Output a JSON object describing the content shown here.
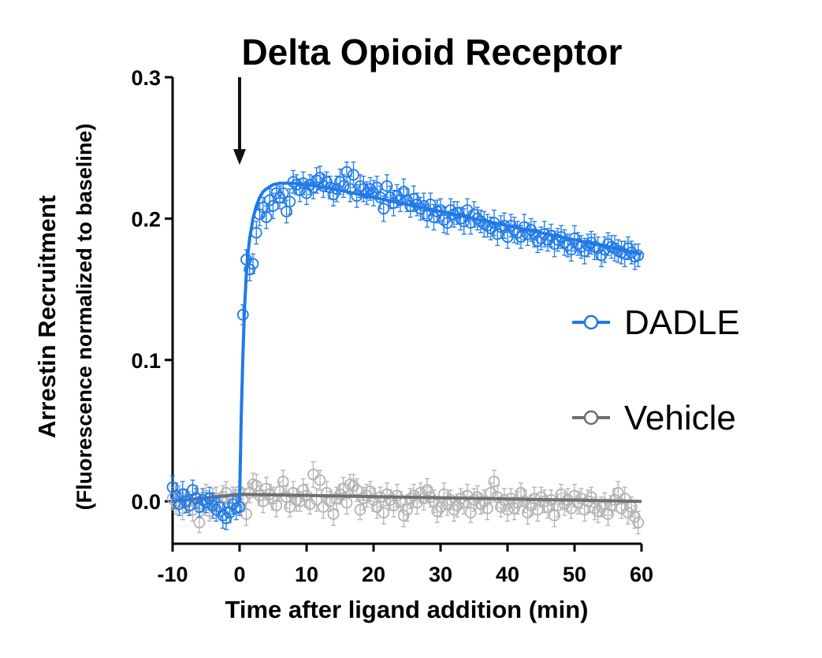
{
  "colors": {
    "dadle": "#1f7ae8",
    "vehicle": "#b3b3b3",
    "vehicle_fit": "#6f6f6f",
    "axis": "#000000"
  },
  "chart_data": {
    "type": "scatter",
    "title": "Delta Opioid Receptor",
    "xlabel": "Time after ligand addition (min)",
    "ylabel": "Arrestin Recruitment",
    "ylabel_sub": "(Fluorescence normalized to baseline)",
    "xlim": [
      -10,
      60
    ],
    "ylim": [
      -0.03,
      0.3
    ],
    "x_ticks": [
      -10,
      0,
      10,
      20,
      30,
      40,
      50,
      60
    ],
    "x_tick_labels": [
      "-10",
      "0",
      "10",
      "20",
      "30",
      "40",
      "50",
      "60"
    ],
    "y_ticks": [
      0.0,
      0.1,
      0.2,
      0.3
    ],
    "y_tick_labels": [
      "0.0",
      "0.1",
      "0.2",
      "0.3"
    ],
    "annotation": {
      "type": "arrow",
      "x": 0,
      "y_from": 0.3,
      "y_to": 0.238
    },
    "legend": {
      "position": "right",
      "entries": [
        "DADLE",
        "Vehicle"
      ]
    },
    "grid": false,
    "series": [
      {
        "name": "DADLE",
        "color": "#1f7ae8",
        "x": [
          -10,
          -9.5,
          -9,
          -8.5,
          -8,
          -7.5,
          -7,
          -6.5,
          -6,
          -5.5,
          -5,
          -4.5,
          -4,
          -3.5,
          -3,
          -2.5,
          -2,
          -1.5,
          -1,
          -0.5,
          0,
          0.5,
          1,
          1.5,
          2,
          2.5,
          3,
          3.5,
          4,
          4.5,
          5,
          5.5,
          6,
          6.5,
          7,
          7.5,
          8,
          8.5,
          9,
          9.5,
          10,
          10.5,
          11,
          11.5,
          12,
          12.5,
          13,
          13.5,
          14,
          14.5,
          15,
          15.5,
          16,
          16.5,
          17,
          17.5,
          18,
          18.5,
          19,
          19.5,
          20,
          20.5,
          21,
          21.5,
          22,
          22.5,
          23,
          23.5,
          24,
          24.5,
          25,
          25.5,
          26,
          26.5,
          27,
          27.5,
          28,
          28.5,
          29,
          29.5,
          30,
          30.5,
          31,
          31.5,
          32,
          32.5,
          33,
          33.5,
          34,
          34.5,
          35,
          35.5,
          36,
          36.5,
          37,
          37.5,
          38,
          38.5,
          39,
          39.5,
          40,
          40.5,
          41,
          41.5,
          42,
          42.5,
          43,
          43.5,
          44,
          44.5,
          45,
          45.5,
          46,
          46.5,
          47,
          47.5,
          48,
          48.5,
          49,
          49.5,
          50,
          50.5,
          51,
          51.5,
          52,
          52.5,
          53,
          53.5,
          54,
          54.5,
          55,
          55.5,
          56,
          56.5,
          57,
          57.5,
          58,
          58.5,
          59,
          59.5
        ],
        "y": [
          0.01,
          0.004,
          -0.002,
          0.005,
          0.0,
          -0.003,
          0.008,
          0.002,
          -0.004,
          0.001,
          -0.001,
          0.002,
          -0.003,
          -0.006,
          -0.004,
          -0.01,
          -0.012,
          -0.008,
          -0.002,
          -0.005,
          -0.004,
          0.132,
          0.171,
          0.164,
          0.168,
          0.19,
          0.203,
          0.208,
          0.201,
          0.213,
          0.209,
          0.218,
          0.215,
          0.218,
          0.205,
          0.212,
          0.226,
          0.224,
          0.22,
          0.225,
          0.218,
          0.224,
          0.222,
          0.227,
          0.229,
          0.223,
          0.226,
          0.222,
          0.217,
          0.221,
          0.226,
          0.223,
          0.233,
          0.221,
          0.231,
          0.216,
          0.223,
          0.221,
          0.218,
          0.221,
          0.218,
          0.222,
          0.215,
          0.207,
          0.223,
          0.215,
          0.211,
          0.216,
          0.213,
          0.219,
          0.213,
          0.209,
          0.214,
          0.21,
          0.207,
          0.209,
          0.202,
          0.21,
          0.201,
          0.205,
          0.206,
          0.199,
          0.197,
          0.206,
          0.203,
          0.204,
          0.2,
          0.198,
          0.206,
          0.197,
          0.203,
          0.2,
          0.198,
          0.196,
          0.195,
          0.193,
          0.197,
          0.189,
          0.194,
          0.195,
          0.187,
          0.195,
          0.192,
          0.19,
          0.187,
          0.194,
          0.189,
          0.192,
          0.189,
          0.184,
          0.186,
          0.189,
          0.185,
          0.188,
          0.182,
          0.185,
          0.187,
          0.183,
          0.181,
          0.178,
          0.186,
          0.182,
          0.18,
          0.177,
          0.181,
          0.183,
          0.18,
          0.179,
          0.174,
          0.178,
          0.182,
          0.18,
          0.179,
          0.177,
          0.176,
          0.175,
          0.179,
          0.176,
          0.173,
          0.174
        ],
        "y_err": [
          0.008,
          0.009,
          0.008,
          0.009,
          0.008,
          0.007,
          0.007,
          0.007,
          0.007,
          0.008,
          0.007,
          0.008,
          0.009,
          0.008,
          0.007,
          0.009,
          0.008,
          0.007,
          0.007,
          0.008,
          0.006,
          0.007,
          0.007,
          0.008,
          0.007,
          0.008,
          0.008,
          0.007,
          0.008,
          0.008,
          0.009,
          0.007,
          0.008,
          0.007,
          0.008,
          0.009,
          0.008,
          0.007,
          0.008,
          0.008,
          0.008,
          0.007,
          0.008,
          0.009,
          0.008,
          0.008,
          0.007,
          0.008,
          0.008,
          0.009,
          0.009,
          0.008,
          0.007,
          0.009,
          0.009,
          0.008,
          0.008,
          0.009,
          0.008,
          0.008,
          0.009,
          0.008,
          0.008,
          0.009,
          0.008,
          0.008,
          0.009,
          0.008,
          0.008,
          0.009,
          0.008,
          0.008,
          0.009,
          0.008,
          0.008,
          0.009,
          0.008,
          0.008,
          0.009,
          0.008,
          0.008,
          0.009,
          0.008,
          0.008,
          0.009,
          0.008,
          0.008,
          0.009,
          0.008,
          0.008,
          0.009,
          0.008,
          0.008,
          0.009,
          0.008,
          0.008,
          0.009,
          0.008,
          0.008,
          0.009,
          0.008,
          0.008,
          0.009,
          0.008,
          0.008,
          0.009,
          0.008,
          0.008,
          0.009,
          0.008,
          0.008,
          0.009,
          0.008,
          0.008,
          0.009,
          0.008,
          0.008,
          0.009,
          0.008,
          0.008,
          0.009,
          0.008,
          0.008,
          0.009,
          0.008,
          0.008,
          0.009,
          0.008,
          0.008,
          0.009,
          0.008,
          0.008,
          0.009,
          0.008,
          0.008,
          0.009,
          0.008,
          0.008,
          0.009,
          0.008
        ],
        "fit": {
          "x": [
            0,
            0.25,
            0.5,
            0.75,
            1,
            1.25,
            1.5,
            2,
            2.5,
            3,
            3.5,
            4,
            5,
            6,
            8,
            10,
            14,
            20,
            30,
            40,
            50,
            60
          ],
          "y": [
            0.0,
            0.06,
            0.105,
            0.138,
            0.16,
            0.175,
            0.186,
            0.2,
            0.209,
            0.215,
            0.219,
            0.221,
            0.224,
            0.225,
            0.225,
            0.224,
            0.221,
            0.215,
            0.205,
            0.195,
            0.185,
            0.175
          ]
        }
      },
      {
        "name": "Vehicle",
        "color": "#b3b3b3",
        "x": [
          -10,
          -9.5,
          -9,
          -8.5,
          -8,
          -7.5,
          -7,
          -6.5,
          -6,
          -5.5,
          -5,
          -4.5,
          -4,
          -3.5,
          -3,
          -2.5,
          -2,
          -1.5,
          -1,
          -0.5,
          0,
          0.5,
          1,
          1.5,
          2,
          2.5,
          3,
          3.5,
          4,
          4.5,
          5,
          5.5,
          6,
          6.5,
          7,
          7.5,
          8,
          8.5,
          9,
          9.5,
          10,
          10.5,
          11,
          11.5,
          12,
          12.5,
          13,
          13.5,
          14,
          14.5,
          15,
          15.5,
          16,
          16.5,
          17,
          17.5,
          18,
          18.5,
          19,
          19.5,
          20,
          20.5,
          21,
          21.5,
          22,
          22.5,
          23,
          23.5,
          24,
          24.5,
          25,
          25.5,
          26,
          26.5,
          27,
          27.5,
          28,
          28.5,
          29,
          29.5,
          30,
          30.5,
          31,
          31.5,
          32,
          32.5,
          33,
          33.5,
          34,
          34.5,
          35,
          35.5,
          36,
          36.5,
          37,
          37.5,
          38,
          38.5,
          39,
          39.5,
          40,
          40.5,
          41,
          41.5,
          42,
          42.5,
          43,
          43.5,
          44,
          44.5,
          45,
          45.5,
          46,
          46.5,
          47,
          47.5,
          48,
          48.5,
          49,
          49.5,
          50,
          50.5,
          51,
          51.5,
          52,
          52.5,
          53,
          53.5,
          54,
          54.5,
          55,
          55.5,
          56,
          56.5,
          57,
          57.5,
          58,
          58.5,
          59,
          59.5
        ],
        "y": [
          0.002,
          -0.001,
          0.004,
          -0.005,
          0.001,
          0.0,
          -0.006,
          0.003,
          -0.015,
          -0.002,
          0.004,
          -0.007,
          0.001,
          0.002,
          -0.003,
          0.003,
          0.006,
          -0.004,
          0.002,
          0.0,
          0.007,
          0.001,
          -0.009,
          0.006,
          0.012,
          0.011,
          0.004,
          0.0,
          0.009,
          0.005,
          0.002,
          -0.003,
          0.007,
          0.014,
          0.003,
          -0.004,
          0.006,
          0.001,
          0.0,
          0.008,
          0.004,
          -0.002,
          0.019,
          0.001,
          0.015,
          -0.004,
          0.006,
          0.0,
          -0.009,
          0.002,
          0.005,
          0.009,
          -0.001,
          0.012,
          0.011,
          0.008,
          -0.006,
          0.002,
          0.004,
          0.007,
          0.001,
          -0.004,
          0.003,
          -0.008,
          0.005,
          0.001,
          -0.003,
          0.004,
          0.0,
          -0.01,
          -0.006,
          0.002,
          0.004,
          -0.001,
          0.006,
          0.002,
          0.008,
          0.003,
          0.0,
          -0.007,
          -0.004,
          0.005,
          -0.002,
          0.001,
          -0.006,
          -0.003,
          0.002,
          -0.001,
          0.004,
          -0.008,
          0.001,
          0.003,
          -0.002,
          0.0,
          -0.005,
          0.006,
          0.014,
          0.003,
          -0.004,
          0.001,
          -0.006,
          0.002,
          -0.005,
          -0.001,
          0.006,
          0.0,
          -0.008,
          -0.003,
          0.002,
          -0.006,
          0.003,
          0.0,
          -0.004,
          0.001,
          -0.01,
          -0.003,
          0.005,
          -0.002,
          0.001,
          -0.005,
          0.004,
          -0.001,
          0.002,
          -0.006,
          0.0,
          0.003,
          -0.005,
          -0.007,
          -0.004,
          -0.002,
          -0.009,
          -0.003,
          0.001,
          0.006,
          -0.005,
          0.002,
          -0.008,
          -0.004,
          -0.011,
          -0.015
        ],
        "y_err": [
          0.008,
          0.008,
          0.007,
          0.008,
          0.008,
          0.007,
          0.008,
          0.008,
          0.007,
          0.008,
          0.008,
          0.007,
          0.008,
          0.008,
          0.007,
          0.008,
          0.008,
          0.007,
          0.008,
          0.008,
          0.007,
          0.008,
          0.008,
          0.007,
          0.008,
          0.008,
          0.007,
          0.008,
          0.008,
          0.007,
          0.008,
          0.008,
          0.007,
          0.008,
          0.008,
          0.007,
          0.008,
          0.008,
          0.007,
          0.008,
          0.008,
          0.007,
          0.009,
          0.008,
          0.007,
          0.008,
          0.008,
          0.007,
          0.008,
          0.008,
          0.007,
          0.008,
          0.008,
          0.007,
          0.008,
          0.008,
          0.007,
          0.008,
          0.008,
          0.007,
          0.008,
          0.008,
          0.007,
          0.008,
          0.008,
          0.007,
          0.008,
          0.008,
          0.007,
          0.008,
          0.008,
          0.007,
          0.008,
          0.008,
          0.007,
          0.008,
          0.008,
          0.007,
          0.008,
          0.008,
          0.007,
          0.008,
          0.008,
          0.007,
          0.008,
          0.008,
          0.007,
          0.008,
          0.008,
          0.007,
          0.008,
          0.008,
          0.007,
          0.008,
          0.008,
          0.007,
          0.008,
          0.008,
          0.007,
          0.008,
          0.008,
          0.007,
          0.008,
          0.008,
          0.007,
          0.008,
          0.008,
          0.007,
          0.008,
          0.008,
          0.007,
          0.008,
          0.008,
          0.007,
          0.008,
          0.008,
          0.007,
          0.008,
          0.008,
          0.007,
          0.008,
          0.008,
          0.007,
          0.008,
          0.008,
          0.007,
          0.008,
          0.008,
          0.007,
          0.008,
          0.008,
          0.007,
          0.008,
          0.008,
          0.007,
          0.008,
          0.008,
          0.007,
          0.008,
          0.008
        ],
        "fit": {
          "x": [
            -10,
            0,
            60
          ],
          "y": [
            0.0,
            0.005,
            0.0
          ]
        }
      }
    ]
  }
}
